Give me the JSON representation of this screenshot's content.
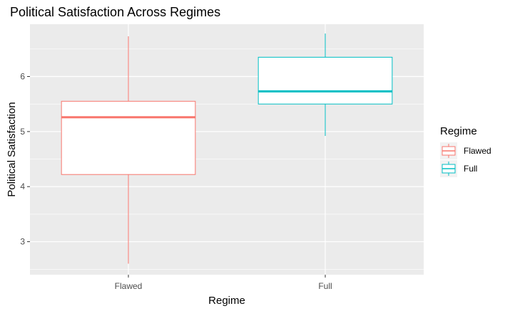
{
  "chart_data": {
    "type": "boxplot",
    "title": "Political Satisfaction Across Regimes",
    "xlabel": "Regime",
    "ylabel": "Political Satisfaction",
    "categories": [
      "Flawed",
      "Full"
    ],
    "ylim": [
      2.4,
      6.95
    ],
    "yticks": [
      3,
      4,
      5,
      6
    ],
    "grid": true,
    "legend": {
      "title": "Regime",
      "position": "right"
    },
    "series": [
      {
        "name": "Flawed",
        "color": "#F8766D",
        "min": 2.6,
        "q1": 4.22,
        "median": 5.26,
        "q3": 5.55,
        "max": 6.73
      },
      {
        "name": "Full",
        "color": "#00BFC4",
        "min": 4.92,
        "q1": 5.5,
        "median": 5.73,
        "q3": 6.35,
        "max": 6.78
      }
    ]
  }
}
